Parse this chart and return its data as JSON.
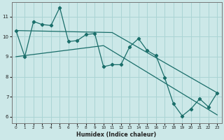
{
  "xlabel": "Humidex (Indice chaleur)",
  "bg_color": "#cce8e8",
  "line_color": "#1a6e6a",
  "grid_color": "#aad4d4",
  "xlim": [
    -0.5,
    23.5
  ],
  "ylim": [
    5.7,
    11.7
  ],
  "xticks": [
    0,
    1,
    2,
    3,
    4,
    5,
    6,
    7,
    8,
    9,
    10,
    11,
    12,
    13,
    14,
    15,
    16,
    17,
    18,
    19,
    20,
    21,
    22,
    23
  ],
  "yticks": [
    6,
    7,
    8,
    9,
    10,
    11
  ],
  "line1_x": [
    0,
    1,
    2,
    3,
    4,
    5,
    6,
    7,
    8,
    9,
    10,
    11,
    12,
    13,
    14,
    15,
    16,
    17,
    18,
    19,
    20,
    21,
    22,
    23
  ],
  "line1_y": [
    10.3,
    9.0,
    10.75,
    10.6,
    10.55,
    11.45,
    9.75,
    9.8,
    10.1,
    10.15,
    8.5,
    8.6,
    8.6,
    9.5,
    9.9,
    9.3,
    9.05,
    7.95,
    6.65,
    6.05,
    6.4,
    6.9,
    6.5,
    7.2
  ],
  "line2_x": [
    0,
    11,
    23
  ],
  "line2_y": [
    10.3,
    10.2,
    7.2
  ],
  "line3_x": [
    0,
    10,
    23
  ],
  "line3_y": [
    9.0,
    9.55,
    6.1
  ]
}
